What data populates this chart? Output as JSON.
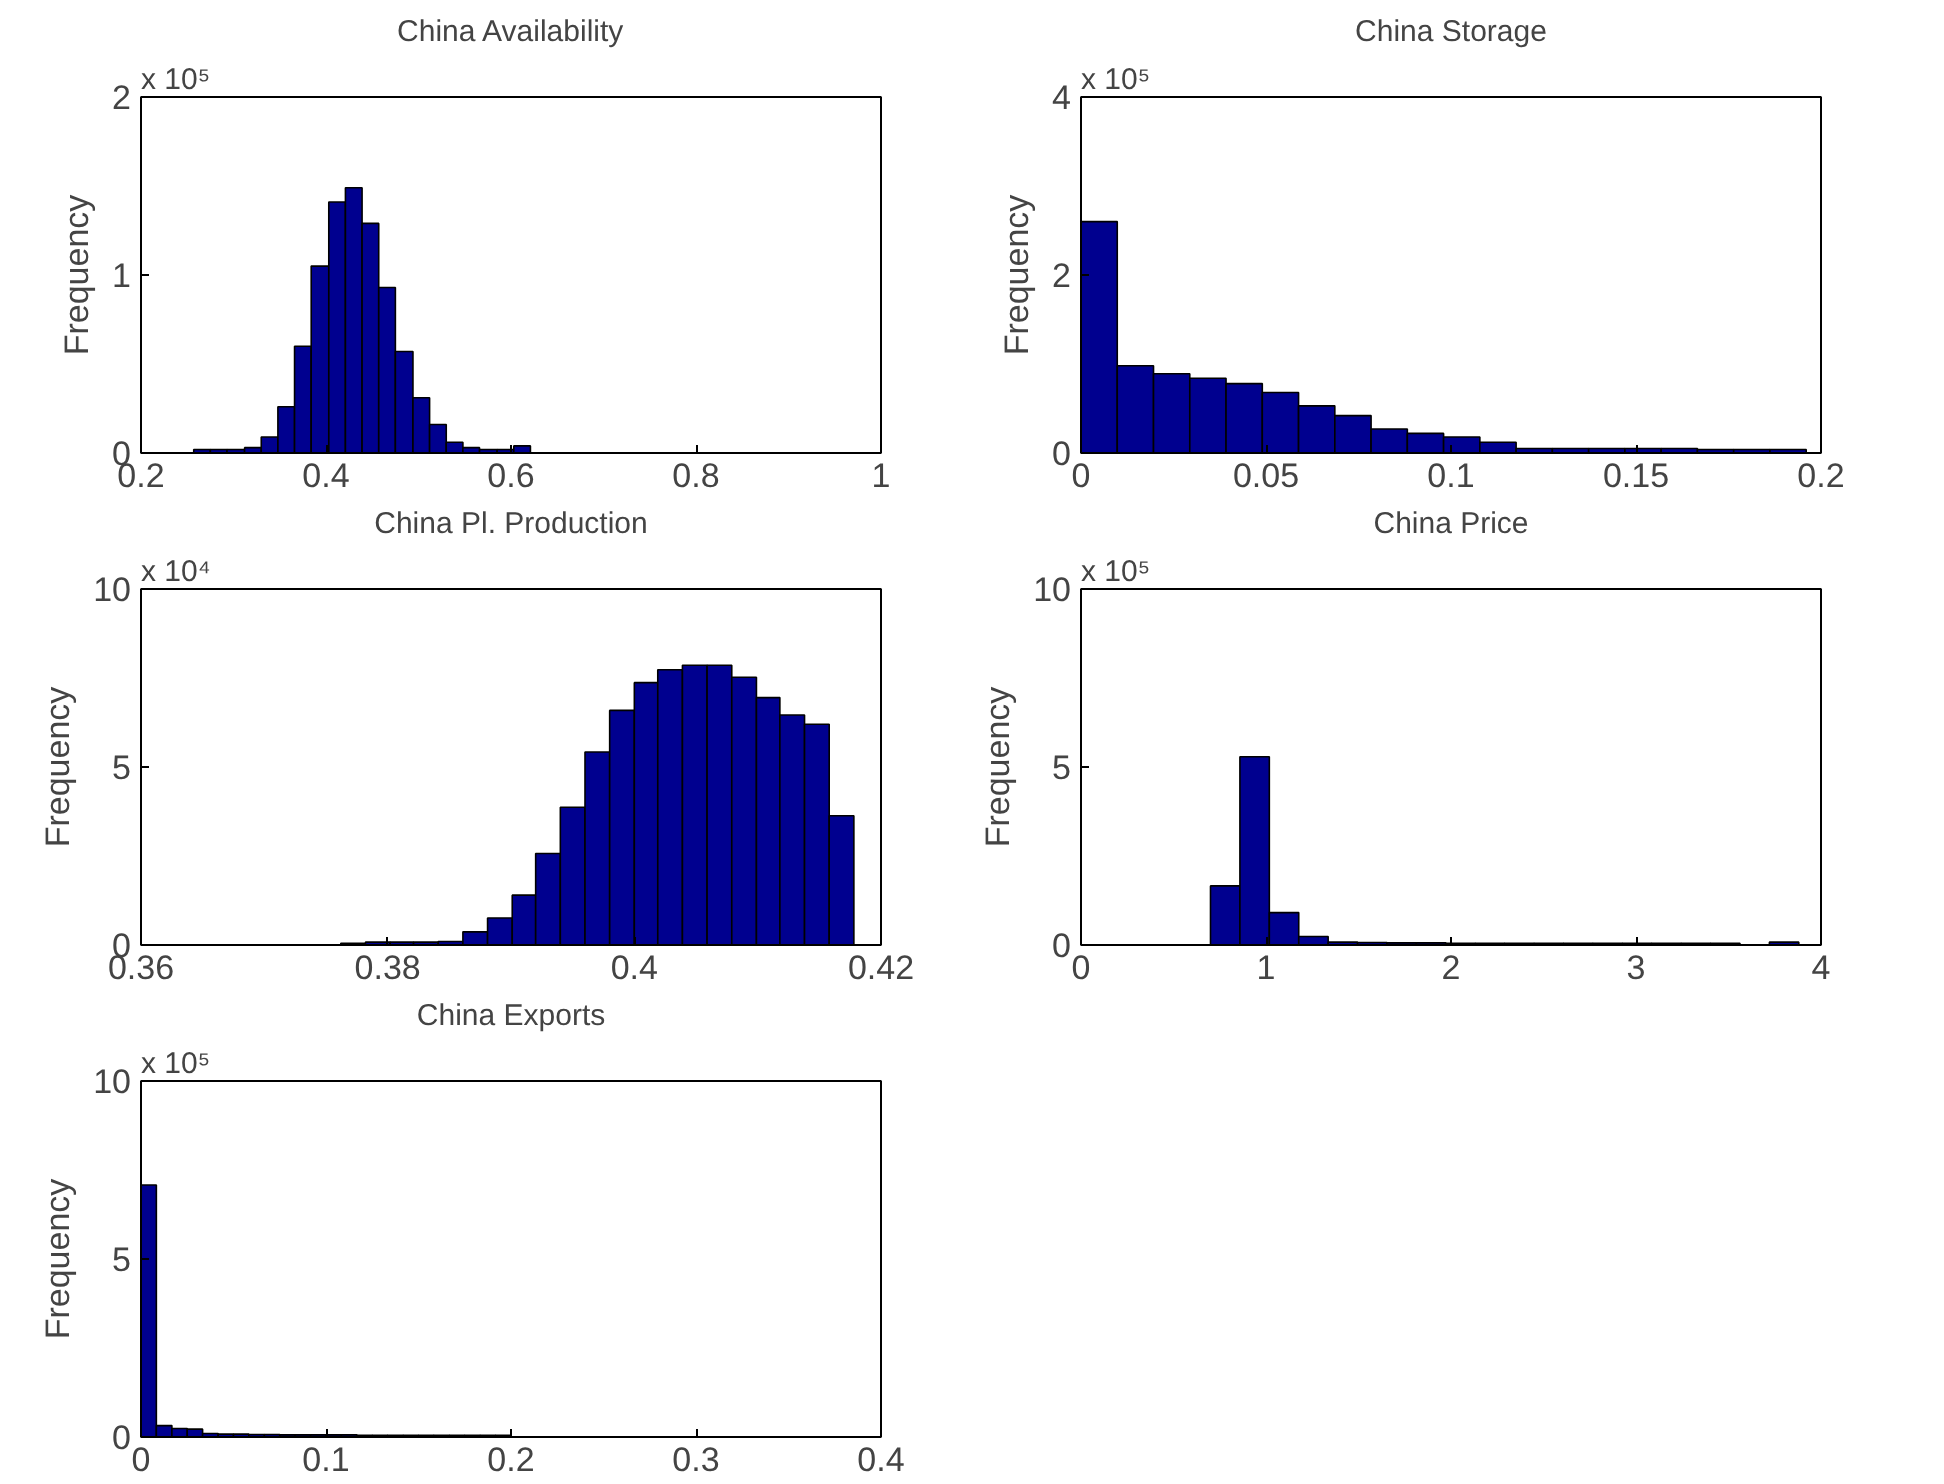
{
  "chart_data": [
    {
      "type": "histogram",
      "title": "China Availability",
      "ylabel": "Frequency",
      "annotations": [
        "x 10⁵"
      ],
      "color": "#00008f",
      "grid": false,
      "bins": [
        0.257,
        0.275,
        0.293,
        0.312,
        0.33,
        0.348,
        0.366,
        0.384,
        0.403,
        0.421,
        0.439,
        0.457,
        0.475,
        0.494,
        0.512,
        0.53,
        0.548,
        0.566,
        0.585,
        0.603,
        0.621
      ],
      "values": [
        0.02,
        0.02,
        0.02,
        0.03,
        0.09,
        0.26,
        0.6,
        1.05,
        1.41,
        1.49,
        1.29,
        0.93,
        0.57,
        0.31,
        0.16,
        0.06,
        0.03,
        0.02,
        0.02,
        0.04
      ],
      "xlim": [
        0.2,
        1
      ],
      "xticks": [
        0.2,
        0.4,
        0.6,
        0.8,
        1
      ],
      "ylim": [
        0,
        2
      ],
      "yticks": [
        0,
        1,
        2
      ]
    },
    {
      "type": "histogram",
      "title": "China Storage",
      "ylabel": "Frequency",
      "annotations": [
        "x 10⁵"
      ],
      "color": "#00008f",
      "grid": false,
      "bins": [
        0,
        0.0098,
        0.0196,
        0.0294,
        0.0392,
        0.049,
        0.0588,
        0.0686,
        0.0784,
        0.0882,
        0.098,
        0.1078,
        0.1176,
        0.1274,
        0.1372,
        0.147,
        0.1568,
        0.1666,
        0.1764,
        0.1862,
        0.196
      ],
      "values": [
        2.6,
        0.98,
        0.89,
        0.84,
        0.78,
        0.68,
        0.53,
        0.42,
        0.27,
        0.22,
        0.18,
        0.12,
        0.05,
        0.05,
        0.05,
        0.05,
        0.05,
        0.04,
        0.04,
        0.04
      ],
      "xlim": [
        0,
        0.2
      ],
      "xticks": [
        0,
        0.05,
        0.1,
        0.15,
        0.2
      ],
      "ylim": [
        0,
        4
      ],
      "yticks": [
        0,
        2,
        4
      ]
    },
    {
      "type": "histogram",
      "title": "China Pl. Production",
      "ylabel": "Frequency",
      "annotations": [
        "x 10⁴"
      ],
      "color": "#00008f",
      "grid": false,
      "bins": [
        0.3762,
        0.3782,
        0.3802,
        0.3821,
        0.3841,
        0.3861,
        0.3881,
        0.3901,
        0.392,
        0.394,
        0.396,
        0.398,
        0.4,
        0.4019,
        0.4039,
        0.4059,
        0.4079,
        0.4099,
        0.4118,
        0.4138,
        0.4158,
        0.4178
      ],
      "values": [
        0.05,
        0.08,
        0.08,
        0.08,
        0.1,
        0.37,
        0.76,
        1.4,
        2.57,
        3.87,
        5.42,
        6.59,
        7.37,
        7.73,
        7.86,
        7.86,
        7.52,
        6.95,
        6.46,
        6.2,
        3.63
      ],
      "xlim": [
        0.36,
        0.42
      ],
      "xticks": [
        0.36,
        0.38,
        0.4,
        0.42
      ],
      "ylim": [
        0,
        10
      ],
      "yticks": [
        0,
        5,
        10
      ]
    },
    {
      "type": "histogram",
      "title": "China Price",
      "ylabel": "Frequency",
      "annotations": [
        "x 10⁵"
      ],
      "color": "#00008f",
      "grid": false,
      "bins": [
        0.7,
        0.859,
        1.018,
        1.177,
        1.336,
        1.495,
        1.654,
        1.813,
        1.972,
        2.131,
        2.29,
        2.449,
        2.608,
        2.767,
        2.926,
        3.085,
        3.244,
        3.403,
        3.562,
        3.721,
        3.88
      ],
      "values": [
        1.66,
        5.29,
        0.91,
        0.24,
        0.08,
        0.07,
        0.06,
        0.06,
        0.05,
        0.05,
        0.05,
        0.05,
        0.05,
        0.05,
        0.05,
        0.05,
        0.05,
        0.05,
        null,
        0.08
      ],
      "xlim": [
        0,
        4
      ],
      "xticks": [
        0,
        1,
        2,
        3,
        4
      ],
      "ylim": [
        0,
        10
      ],
      "yticks": [
        0,
        5,
        10
      ]
    },
    {
      "type": "histogram",
      "title": "China Exports",
      "ylabel": "Frequency",
      "annotations": [
        "x 10⁵"
      ],
      "color": "#00008f",
      "grid": false,
      "bins": [
        0,
        0.0083,
        0.0167,
        0.025,
        0.0333,
        0.0417,
        0.05,
        0.0583,
        0.0667,
        0.075,
        0.0833,
        0.0917,
        0.1,
        0.1083,
        0.1167,
        0.125,
        0.1333,
        0.1417,
        0.15,
        0.1583,
        0.1667,
        0.175,
        0.1833,
        0.1917,
        0.2
      ],
      "values": [
        7.08,
        0.32,
        0.24,
        0.22,
        0.1,
        0.08,
        0.08,
        0.07,
        0.07,
        0.06,
        0.06,
        0.06,
        0.06,
        0.06,
        0.05,
        0.05,
        0.05,
        0.05,
        0.05,
        0.05,
        0.05,
        0.05,
        0.05,
        0.05
      ],
      "xlim": [
        0,
        0.4
      ],
      "xticks": [
        0,
        0.1,
        0.2,
        0.3,
        0.4
      ],
      "ylim": [
        0,
        10
      ],
      "yticks": [
        0,
        5,
        10
      ]
    }
  ]
}
